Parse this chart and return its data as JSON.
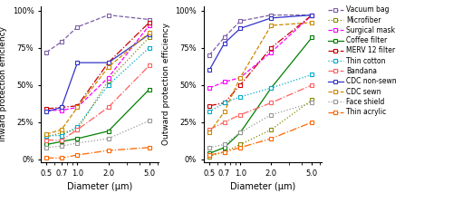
{
  "x": [
    0.5,
    0.7,
    1.0,
    2.0,
    5.0
  ],
  "inward": {
    "Vacuum bag": [
      0.72,
      0.79,
      0.89,
      0.97,
      0.94
    ],
    "Microfiber": [
      0.15,
      0.18,
      0.2,
      0.53,
      0.82
    ],
    "Surgical mask": [
      0.33,
      0.33,
      0.35,
      0.55,
      0.9
    ],
    "Coffee filter": [
      0.1,
      0.12,
      0.14,
      0.19,
      0.47
    ],
    "MERV 12 filter": [
      0.34,
      0.35,
      0.36,
      0.65,
      0.92
    ],
    "Thin cotton": [
      0.16,
      0.16,
      0.22,
      0.5,
      0.75
    ],
    "Bandana": [
      0.13,
      0.13,
      0.2,
      0.35,
      0.63
    ],
    "CDC non-sewn": [
      0.32,
      0.35,
      0.65,
      0.65,
      0.84
    ],
    "CDC sewn": [
      0.17,
      0.2,
      0.35,
      0.62,
      0.85
    ],
    "Face shield": [
      0.08,
      0.09,
      0.11,
      0.14,
      0.26
    ],
    "Thin acrylic": [
      0.01,
      0.01,
      0.03,
      0.06,
      0.08
    ]
  },
  "outward": {
    "Vacuum bag": [
      0.7,
      0.82,
      0.93,
      0.97,
      0.97
    ],
    "Microfiber": [
      0.02,
      0.05,
      0.1,
      0.2,
      0.4
    ],
    "Surgical mask": [
      0.48,
      0.52,
      0.55,
      0.72,
      0.97
    ],
    "Coffee filter": [
      0.04,
      0.08,
      0.18,
      0.48,
      0.82
    ],
    "MERV 12 filter": [
      0.36,
      0.38,
      0.5,
      0.75,
      0.97
    ],
    "Thin cotton": [
      0.32,
      0.38,
      0.42,
      0.48,
      0.57
    ],
    "Bandana": [
      0.2,
      0.25,
      0.3,
      0.38,
      0.5
    ],
    "CDC non-sewn": [
      0.6,
      0.78,
      0.88,
      0.95,
      0.97
    ],
    "CDC sewn": [
      0.18,
      0.32,
      0.55,
      0.9,
      0.92
    ],
    "Face shield": [
      0.08,
      0.1,
      0.18,
      0.3,
      0.38
    ],
    "Thin acrylic": [
      0.03,
      0.05,
      0.08,
      0.14,
      0.25
    ]
  },
  "colors": {
    "Vacuum bag": "#7B5EA7",
    "Microfiber": "#8B8B00",
    "Surgical mask": "#FF00FF",
    "Coffee filter": "#008000",
    "MERV 12 filter": "#CC0000",
    "Thin cotton": "#00AACC",
    "Bandana": "#FF6060",
    "CDC non-sewn": "#3333CC",
    "CDC sewn": "#CC8800",
    "Face shield": "#999999",
    "Thin acrylic": "#FF6600"
  },
  "linestyles": {
    "Vacuum bag": "--",
    "Microfiber": ":",
    "Surgical mask": "--",
    "Coffee filter": "-",
    "MERV 12 filter": "-.",
    "Thin cotton": ":",
    "Bandana": "-.",
    "CDC non-sewn": "-",
    "CDC sewn": "--",
    "Face shield": ":",
    "Thin acrylic": "-."
  },
  "legend_labels": [
    "Vacuum bag",
    "Microfiber",
    "Surgical mask",
    "Coffee filter",
    "MERV 12 filter",
    "Thin cotton",
    "Bandana",
    "CDC non-sewn",
    "CDC sewn",
    "Face shield",
    "Thin acrylic"
  ],
  "xlabel": "Diameter (μm)",
  "ylabel_inward": "Inward protection efficiency",
  "ylabel_outward": "Outward protection efficiency",
  "xticks": [
    0.5,
    0.7,
    1.0,
    2.0,
    5.0
  ],
  "xticklabels": [
    "0.5",
    "0.7",
    "1.0",
    "2.0",
    "5.0"
  ],
  "yticks": [
    0,
    0.25,
    0.5,
    0.75,
    1.0
  ],
  "yticklabels": [
    "0%",
    "25%",
    "50%",
    "75%",
    "100%"
  ]
}
